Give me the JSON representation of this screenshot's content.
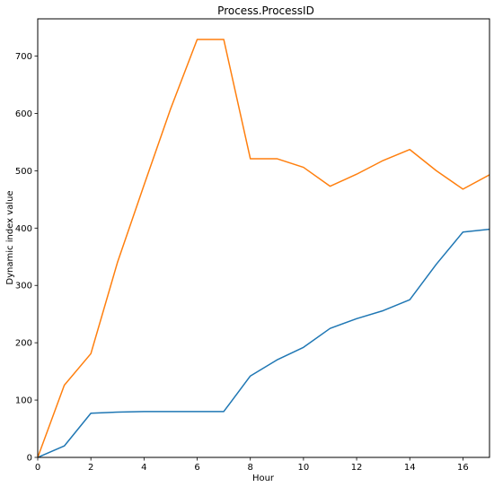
{
  "chart_data": {
    "type": "line",
    "title": "Process.ProcessID",
    "xlabel": "Hour",
    "ylabel": "Dynamic index value",
    "xlim": [
      0,
      17
    ],
    "ylim": [
      0,
      765
    ],
    "xticks": [
      0,
      2,
      4,
      6,
      8,
      10,
      12,
      14,
      16
    ],
    "yticks": [
      0,
      100,
      200,
      300,
      400,
      500,
      600,
      700
    ],
    "grid": false,
    "x": [
      0,
      1,
      2,
      3,
      4,
      5,
      6,
      7,
      8,
      9,
      10,
      11,
      12,
      13,
      14,
      15,
      16,
      17
    ],
    "series": [
      {
        "color": "#1f77b4",
        "values": [
          0,
          20,
          77,
          79,
          80,
          80,
          80,
          80,
          142,
          170,
          192,
          225,
          242,
          256,
          275,
          337,
          393,
          398
        ]
      },
      {
        "color": "#ff7f0e",
        "values": [
          0,
          126,
          181,
          340,
          475,
          608,
          729,
          729,
          521,
          521,
          506,
          473,
          494,
          518,
          537,
          500,
          468,
          493
        ]
      }
    ]
  }
}
